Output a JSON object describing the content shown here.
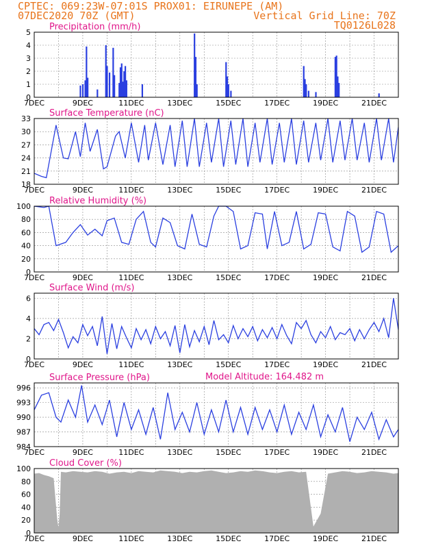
{
  "header": {
    "line1": "CPTEC:   069:23W-07:01S   PROX01: EIRUNEPE (AM)",
    "line2_left": "07DEC2020 70Z (GMT)",
    "line2_right": "Vertical Grid Line: 70Z",
    "line3_right": "TQ0126L028",
    "model_altitude": "Model Altitude: 164.482  m"
  },
  "colors": {
    "header": "#e8741b",
    "title": "#e0168a",
    "series": "#2a3fe0",
    "cloud": "#b0b0b0",
    "grid": "#888888"
  },
  "chart_data": [
    {
      "type": "bar",
      "title": "Precipitation  (mm/h)",
      "x_ticks": [
        "7DEC",
        "9DEC",
        "11DEC",
        "13DEC",
        "15DEC",
        "17DEC",
        "19DEC",
        "21DEC"
      ],
      "y_ticks": [
        "0",
        "1",
        "2",
        "3",
        "4",
        "5"
      ],
      "ylim": [
        0,
        5
      ],
      "x": [
        1.9,
        2.0,
        2.1,
        2.15,
        2.2,
        2.6,
        2.95,
        3.0,
        3.1,
        3.25,
        3.3,
        3.5,
        3.55,
        3.6,
        3.65,
        3.7,
        3.75,
        3.8,
        4.45,
        6.6,
        6.65,
        6.7,
        7.9,
        7.95,
        8.0,
        8.1,
        11.1,
        11.15,
        11.2,
        11.3,
        11.6,
        12.4,
        12.45,
        12.5,
        12.55,
        14.2
      ],
      "values": [
        0.9,
        1.0,
        1.3,
        3.9,
        1.5,
        0.6,
        4.0,
        2.4,
        1.9,
        3.8,
        1.7,
        1.1,
        2.3,
        2.6,
        1.2,
        2.0,
        2.4,
        1.3,
        1.0,
        4.9,
        3.1,
        1.0,
        2.7,
        1.6,
        1.0,
        0.5,
        2.4,
        1.4,
        1.0,
        0.5,
        0.4,
        3.1,
        3.2,
        1.6,
        1.1,
        0.3
      ]
    },
    {
      "type": "line",
      "title": "Surface Temperature  (nC)",
      "x_ticks": [
        "7DEC",
        "9DEC",
        "11DEC",
        "13DEC",
        "15DEC",
        "17DEC",
        "19DEC",
        "21DEC"
      ],
      "y_ticks": [
        "18",
        "21",
        "24",
        "27",
        "30",
        "33"
      ],
      "ylim": [
        18,
        33
      ],
      "x": [
        0,
        0.3,
        0.5,
        0.9,
        1.2,
        1.4,
        1.7,
        1.9,
        2.1,
        2.3,
        2.6,
        2.85,
        3.0,
        3.35,
        3.5,
        3.75,
        4.0,
        4.3,
        4.55,
        4.7,
        5.0,
        5.3,
        5.6,
        5.8,
        6.1,
        6.3,
        6.6,
        6.8,
        7.1,
        7.3,
        7.6,
        7.8,
        8.1,
        8.3,
        8.6,
        8.8,
        9.1,
        9.3,
        9.6,
        9.8,
        10.1,
        10.3,
        10.6,
        10.8,
        11.1,
        11.3,
        11.6,
        11.8,
        12.1,
        12.3,
        12.6,
        12.8,
        13.1,
        13.3,
        13.6,
        13.8,
        14.1,
        14.3,
        14.6,
        14.8,
        15.0
      ],
      "values": [
        20.5,
        19.8,
        19.5,
        31.5,
        24.0,
        23.8,
        30.0,
        24.3,
        32.0,
        25.5,
        30.5,
        21.5,
        22.0,
        29.0,
        30.0,
        24.0,
        32.0,
        23.0,
        31.5,
        23.5,
        32.0,
        22.5,
        31.5,
        22.0,
        32.5,
        22.0,
        33.0,
        22.0,
        32.0,
        23.0,
        33.0,
        22.0,
        32.5,
        22.5,
        33.0,
        22.0,
        32.0,
        23.0,
        33.0,
        22.5,
        32.0,
        23.0,
        33.0,
        22.5,
        32.5,
        23.0,
        32.0,
        23.5,
        33.0,
        23.0,
        32.5,
        23.5,
        33.0,
        23.5,
        32.0,
        23.0,
        33.0,
        23.5,
        33.0,
        23.0,
        31.0
      ]
    },
    {
      "type": "line",
      "title": "Relative Humidity  (%)",
      "x_ticks": [
        "7DEC",
        "9DEC",
        "11DEC",
        "13DEC",
        "15DEC",
        "17DEC",
        "19DEC",
        "21DEC"
      ],
      "y_ticks": [
        "0",
        "20",
        "40",
        "60",
        "80",
        "100"
      ],
      "ylim": [
        0,
        100
      ],
      "x": [
        0,
        0.4,
        0.6,
        0.9,
        1.3,
        1.6,
        1.9,
        2.2,
        2.5,
        2.8,
        3.0,
        3.3,
        3.6,
        3.9,
        4.2,
        4.5,
        4.8,
        5.0,
        5.3,
        5.6,
        5.9,
        6.2,
        6.5,
        6.8,
        7.1,
        7.4,
        7.6,
        7.9,
        8.2,
        8.5,
        8.8,
        9.1,
        9.4,
        9.6,
        9.9,
        10.2,
        10.5,
        10.8,
        11.1,
        11.4,
        11.7,
        12.0,
        12.3,
        12.6,
        12.9,
        13.2,
        13.5,
        13.8,
        14.1,
        14.4,
        14.7,
        15.0
      ],
      "values": [
        100,
        98,
        100,
        40,
        45,
        60,
        72,
        56,
        65,
        55,
        78,
        82,
        45,
        42,
        80,
        92,
        45,
        38,
        82,
        75,
        40,
        35,
        88,
        42,
        38,
        85,
        100,
        100,
        92,
        35,
        40,
        90,
        88,
        35,
        92,
        40,
        45,
        92,
        35,
        42,
        90,
        88,
        38,
        32,
        92,
        85,
        30,
        38,
        92,
        88,
        30,
        40
      ]
    },
    {
      "type": "line",
      "title": "Surface Wind  (m/s)",
      "x_ticks": [
        "7DEC",
        "9DEC",
        "11DEC",
        "13DEC",
        "15DEC",
        "17DEC",
        "19DEC",
        "21DEC"
      ],
      "y_ticks": [
        "0",
        "2",
        "4",
        "6"
      ],
      "ylim": [
        0,
        6.5
      ],
      "x": [
        0,
        0.2,
        0.4,
        0.6,
        0.8,
        1.0,
        1.2,
        1.4,
        1.6,
        1.8,
        2.0,
        2.2,
        2.4,
        2.6,
        2.8,
        3.0,
        3.2,
        3.4,
        3.6,
        3.8,
        4.0,
        4.2,
        4.4,
        4.6,
        4.8,
        5.0,
        5.2,
        5.4,
        5.6,
        5.8,
        6.0,
        6.2,
        6.4,
        6.6,
        6.8,
        7.0,
        7.2,
        7.4,
        7.6,
        7.8,
        8.0,
        8.2,
        8.4,
        8.6,
        8.8,
        9.0,
        9.2,
        9.4,
        9.6,
        9.8,
        10.0,
        10.2,
        10.4,
        10.6,
        10.8,
        11.0,
        11.2,
        11.4,
        11.6,
        11.8,
        12.0,
        12.2,
        12.4,
        12.6,
        12.8,
        13.0,
        13.2,
        13.4,
        13.6,
        13.8,
        14.0,
        14.2,
        14.4,
        14.6,
        14.8,
        15.0
      ],
      "values": [
        3.0,
        2.4,
        3.4,
        3.6,
        2.8,
        3.9,
        2.6,
        1.1,
        2.2,
        1.6,
        3.4,
        2.3,
        3.2,
        1.3,
        4.2,
        0.5,
        3.5,
        1.0,
        3.2,
        2.1,
        1.1,
        3.0,
        1.9,
        2.9,
        1.5,
        3.2,
        2.0,
        2.7,
        1.3,
        3.3,
        0.6,
        3.4,
        1.2,
        2.8,
        1.7,
        3.2,
        1.4,
        3.8,
        1.9,
        2.4,
        1.6,
        3.3,
        2.0,
        3.0,
        2.2,
        3.2,
        1.8,
        2.9,
        2.1,
        3.1,
        2.0,
        3.4,
        2.3,
        1.5,
        3.6,
        3.0,
        3.8,
        2.4,
        1.6,
        2.7,
        2.1,
        3.2,
        1.9,
        2.6,
        2.4,
        3.0,
        1.8,
        2.9,
        2.0,
        2.9,
        3.6,
        2.7,
        4.0,
        2.1,
        6.0,
        2.9
      ]
    },
    {
      "type": "line",
      "title": "Surface Pressure  (hPa)",
      "x_ticks": [
        "7DEC",
        "9DEC",
        "11DEC",
        "13DEC",
        "15DEC",
        "17DEC",
        "19DEC",
        "21DEC"
      ],
      "y_ticks": [
        "984",
        "987",
        "990",
        "993",
        "996"
      ],
      "ylim": [
        984,
        997
      ],
      "x": [
        0,
        0.3,
        0.6,
        0.9,
        1.1,
        1.4,
        1.7,
        1.95,
        2.2,
        2.5,
        2.8,
        3.1,
        3.4,
        3.7,
        4.0,
        4.3,
        4.6,
        4.9,
        5.2,
        5.5,
        5.8,
        6.1,
        6.4,
        6.7,
        7.0,
        7.3,
        7.6,
        7.9,
        8.2,
        8.5,
        8.8,
        9.1,
        9.4,
        9.7,
        10.0,
        10.3,
        10.6,
        10.9,
        11.2,
        11.5,
        11.8,
        12.1,
        12.4,
        12.7,
        13.0,
        13.3,
        13.6,
        13.9,
        14.2,
        14.5,
        14.8,
        15.0
      ],
      "values": [
        991.5,
        994.5,
        995.0,
        990.0,
        989.0,
        993.5,
        990.0,
        996.5,
        989.0,
        992.5,
        988.5,
        993.5,
        986.0,
        993.0,
        987.5,
        991.5,
        986.5,
        992.0,
        985.5,
        995.0,
        987.5,
        991.0,
        987.0,
        993.0,
        986.5,
        991.5,
        987.0,
        993.5,
        987.0,
        992.0,
        986.5,
        992.0,
        987.5,
        991.5,
        987.0,
        992.5,
        986.5,
        991.0,
        987.5,
        992.5,
        986.0,
        990.5,
        987.0,
        992.0,
        985.0,
        990.0,
        987.5,
        991.0,
        985.5,
        989.5,
        986.0,
        987.5
      ]
    },
    {
      "type": "area",
      "title": "Cloud Cover  (%)",
      "x_ticks": [
        "7DEC",
        "9DEC",
        "11DEC",
        "13DEC",
        "15DEC",
        "17DEC",
        "19DEC",
        "21DEC"
      ],
      "y_ticks": [
        "0",
        "20",
        "40",
        "60",
        "80",
        "100"
      ],
      "ylim": [
        0,
        100
      ],
      "x": [
        0,
        0.2,
        0.4,
        0.6,
        0.8,
        0.95,
        1.0,
        1.05,
        1.1,
        1.3,
        1.6,
        1.9,
        2.2,
        2.5,
        2.8,
        3.1,
        3.4,
        3.7,
        4.0,
        4.3,
        4.6,
        4.9,
        5.2,
        5.5,
        5.8,
        6.1,
        6.4,
        6.7,
        7.0,
        7.3,
        7.6,
        7.9,
        8.2,
        8.5,
        8.8,
        9.1,
        9.4,
        9.7,
        10.0,
        10.3,
        10.6,
        10.9,
        11.2,
        11.5,
        11.8,
        12.1,
        12.4,
        12.7,
        13.0,
        13.3,
        13.6,
        13.9,
        14.2,
        14.5,
        14.8,
        15.0
      ],
      "values": [
        92,
        93,
        90,
        88,
        85,
        20,
        8,
        30,
        95,
        94,
        96,
        95,
        94,
        96,
        95,
        92,
        94,
        95,
        93,
        96,
        95,
        94,
        97,
        96,
        95,
        93,
        95,
        94,
        96,
        97,
        95,
        93,
        94,
        96,
        95,
        97,
        96,
        94,
        93,
        95,
        96,
        94,
        95,
        10,
        30,
        92,
        94,
        96,
        95,
        93,
        94,
        96,
        95,
        94,
        92,
        93
      ]
    }
  ]
}
